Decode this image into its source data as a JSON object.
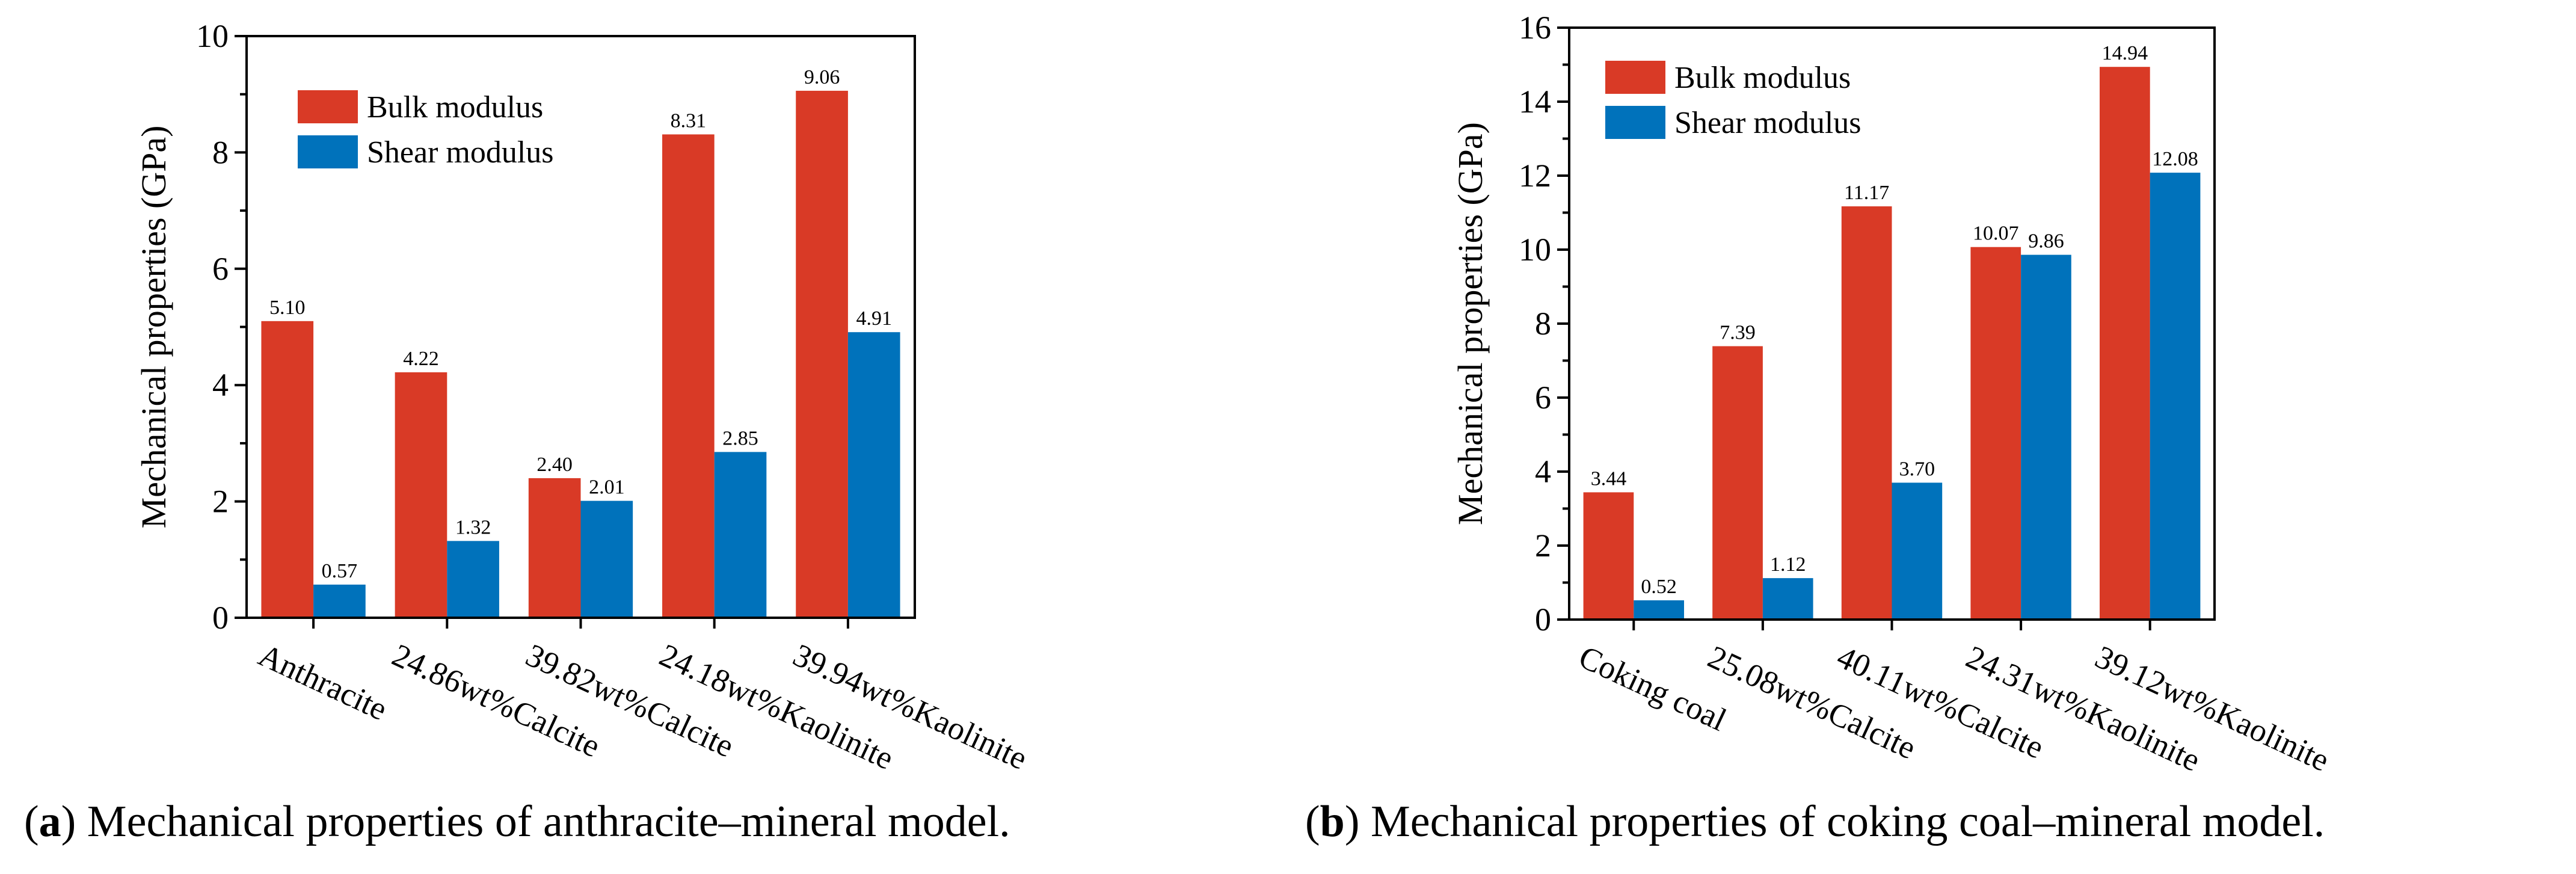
{
  "colors": {
    "bulk": "#D93A26",
    "shear": "#0072BB"
  },
  "chart_data": [
    {
      "type": "bar",
      "caption_letter": "a",
      "caption": ") Mechanical properties of anthracite–mineral model.",
      "caption_open": "(",
      "ylabel": "Mechanical properties (GPa)",
      "xlabel": "",
      "ylim": [
        0,
        10
      ],
      "yticks": [
        "0",
        "2",
        "4",
        "6",
        "8",
        "10"
      ],
      "legend_position": "top-left",
      "categories": [
        "Anthracite",
        "24.86wt%Calcite",
        "39.82wt%Calcite",
        "24.18wt%Kaolinite",
        "39.94wt%Kaolinite"
      ],
      "series": [
        {
          "name": "Bulk modulus",
          "values": [
            5.1,
            4.22,
            2.4,
            8.31,
            9.06
          ],
          "labels": [
            "5.10",
            "4.22",
            "2.40",
            "8.31",
            "9.06"
          ]
        },
        {
          "name": "Shear modulus",
          "values": [
            0.57,
            1.32,
            2.01,
            2.85,
            4.91
          ],
          "labels": [
            "0.57",
            "1.32",
            "2.01",
            "2.85",
            "4.91"
          ]
        }
      ]
    },
    {
      "type": "bar",
      "caption_letter": "b",
      "caption": ") Mechanical properties of coking coal–mineral model.",
      "caption_open": "(",
      "ylabel": "Mechanical properties (GPa)",
      "xlabel": "",
      "ylim": [
        0,
        16
      ],
      "yticks": [
        "0",
        "2",
        "4",
        "6",
        "8",
        "10",
        "12",
        "14",
        "16"
      ],
      "legend_position": "top-left",
      "categories": [
        "Coking coal",
        "25.08wt%Calcite",
        "40.11wt%Calcite",
        "24.31wt%Kaolinite",
        "39.12wt%Kaolinite"
      ],
      "series": [
        {
          "name": "Bulk modulus",
          "values": [
            3.44,
            7.39,
            11.17,
            10.07,
            14.94
          ],
          "labels": [
            "3.44",
            "7.39",
            "11.17",
            "10.07",
            "14.94"
          ]
        },
        {
          "name": "Shear modulus",
          "values": [
            0.52,
            1.12,
            3.7,
            9.86,
            12.08
          ],
          "labels": [
            "0.52",
            "1.12",
            "3.70",
            "9.86",
            "12.08"
          ]
        }
      ]
    }
  ]
}
